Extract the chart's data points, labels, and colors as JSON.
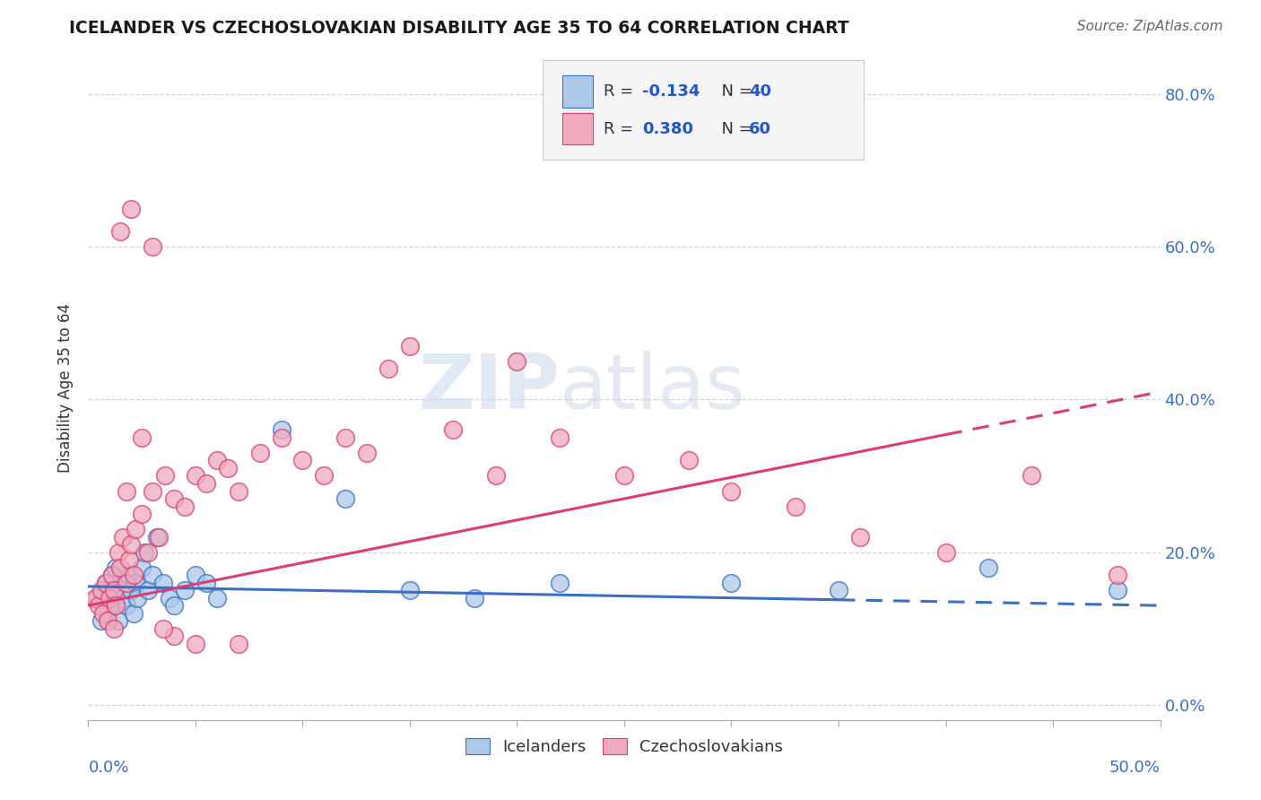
{
  "title": "ICELANDER VS CZECHOSLOVAKIAN DISABILITY AGE 35 TO 64 CORRELATION CHART",
  "source": "Source: ZipAtlas.com",
  "ylabel": "Disability Age 35 to 64",
  "legend_labels": [
    "Icelanders",
    "Czechoslovakians"
  ],
  "xlim": [
    0.0,
    0.5
  ],
  "ylim": [
    -0.02,
    0.85
  ],
  "icelander_color": "#adc8e8",
  "czech_color": "#f0aabe",
  "icelander_line_color": "#3a6fc4",
  "czech_line_color": "#d94070",
  "background_color": "#ffffff",
  "grid_color": "#d0d0d0",
  "r_color": "#2255cc",
  "icelander_x": [
    0.004,
    0.006,
    0.007,
    0.008,
    0.009,
    0.01,
    0.011,
    0.012,
    0.013,
    0.014,
    0.015,
    0.016,
    0.017,
    0.018,
    0.019,
    0.02,
    0.021,
    0.022,
    0.023,
    0.025,
    0.026,
    0.028,
    0.03,
    0.032,
    0.035,
    0.038,
    0.04,
    0.045,
    0.05,
    0.055,
    0.06,
    0.09,
    0.12,
    0.15,
    0.18,
    0.22,
    0.3,
    0.35,
    0.42,
    0.48
  ],
  "icelander_y": [
    0.14,
    0.11,
    0.13,
    0.16,
    0.12,
    0.15,
    0.17,
    0.13,
    0.18,
    0.11,
    0.15,
    0.14,
    0.16,
    0.13,
    0.17,
    0.15,
    0.12,
    0.16,
    0.14,
    0.18,
    0.2,
    0.15,
    0.17,
    0.22,
    0.16,
    0.14,
    0.13,
    0.15,
    0.17,
    0.16,
    0.14,
    0.36,
    0.27,
    0.15,
    0.14,
    0.16,
    0.16,
    0.15,
    0.18,
    0.15
  ],
  "czech_x": [
    0.003,
    0.005,
    0.006,
    0.007,
    0.008,
    0.009,
    0.01,
    0.011,
    0.012,
    0.013,
    0.014,
    0.015,
    0.016,
    0.018,
    0.019,
    0.02,
    0.021,
    0.022,
    0.025,
    0.028,
    0.03,
    0.033,
    0.036,
    0.04,
    0.045,
    0.05,
    0.055,
    0.06,
    0.065,
    0.07,
    0.08,
    0.09,
    0.1,
    0.11,
    0.12,
    0.13,
    0.14,
    0.15,
    0.17,
    0.19,
    0.2,
    0.22,
    0.25,
    0.28,
    0.3,
    0.33,
    0.36,
    0.4,
    0.44,
    0.48,
    0.02,
    0.03,
    0.015,
    0.025,
    0.018,
    0.012,
    0.05,
    0.07,
    0.04,
    0.035
  ],
  "czech_y": [
    0.14,
    0.13,
    0.15,
    0.12,
    0.16,
    0.11,
    0.14,
    0.17,
    0.15,
    0.13,
    0.2,
    0.18,
    0.22,
    0.16,
    0.19,
    0.21,
    0.17,
    0.23,
    0.25,
    0.2,
    0.28,
    0.22,
    0.3,
    0.27,
    0.26,
    0.3,
    0.29,
    0.32,
    0.31,
    0.28,
    0.33,
    0.35,
    0.32,
    0.3,
    0.35,
    0.33,
    0.44,
    0.47,
    0.36,
    0.3,
    0.45,
    0.35,
    0.3,
    0.32,
    0.28,
    0.26,
    0.22,
    0.2,
    0.3,
    0.17,
    0.65,
    0.6,
    0.62,
    0.35,
    0.28,
    0.1,
    0.08,
    0.08,
    0.09,
    0.1
  ],
  "ice_line_x0": 0.0,
  "ice_line_x1": 0.5,
  "ice_line_y0": 0.155,
  "ice_line_y1": 0.13,
  "czk_line_x0": 0.0,
  "czk_line_x1": 0.5,
  "czk_line_y0": 0.13,
  "czk_line_y1": 0.41
}
